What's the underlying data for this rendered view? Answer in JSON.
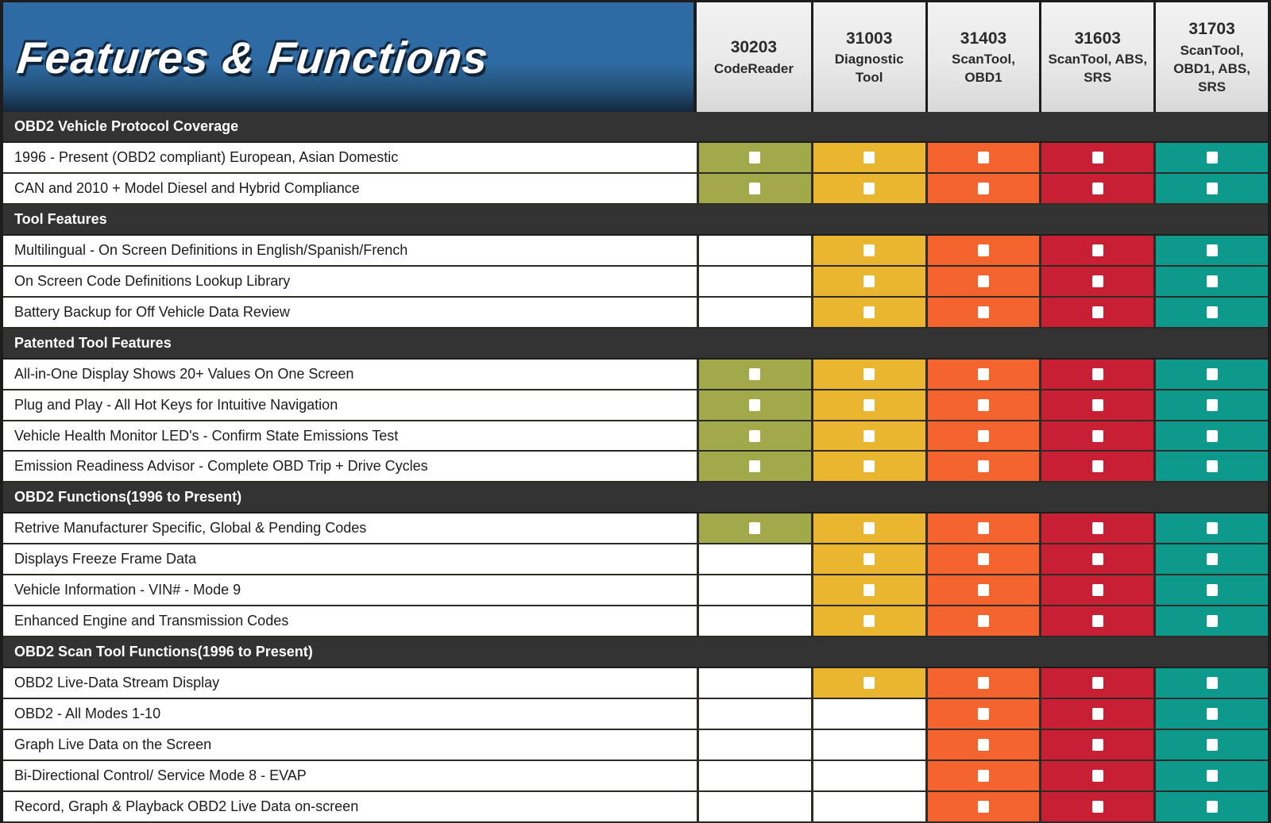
{
  "header": {
    "title": "Features & Functions",
    "banner_colors": {
      "top": "#2e6ba4",
      "bottom": "#13273d"
    },
    "products": [
      {
        "id": "30203",
        "name": "CodeReader",
        "color": "#a2a94b"
      },
      {
        "id": "31003",
        "name": "Diagnostic Tool",
        "color": "#ebb62f"
      },
      {
        "id": "31403",
        "name": "ScanTool, OBD1",
        "color": "#f4642e"
      },
      {
        "id": "31603",
        "name": "ScanTool, ABS, SRS",
        "color": "#c91f35"
      },
      {
        "id": "31703",
        "name": "ScanTool, OBD1, ABS, SRS",
        "color": "#0d9a8c"
      }
    ]
  },
  "marker": {
    "icon": "check-marker",
    "color": "#ffffff"
  },
  "section_style": {
    "background": "#333333",
    "text_color": "#ffffff"
  },
  "sections": [
    {
      "title": "OBD2 Vehicle Protocol Coverage",
      "rows": [
        {
          "label": "1996 - Present (OBD2 compliant) European, Asian Domestic",
          "checks": [
            true,
            true,
            true,
            true,
            true
          ]
        },
        {
          "label": "CAN and 2010 + Model Diesel and Hybrid Compliance",
          "checks": [
            true,
            true,
            true,
            true,
            true
          ]
        }
      ]
    },
    {
      "title": "Tool Features",
      "rows": [
        {
          "label": "Multilingual - On Screen Definitions in English/Spanish/French",
          "checks": [
            false,
            true,
            true,
            true,
            true
          ]
        },
        {
          "label": "On Screen Code Definitions Lookup Library",
          "checks": [
            false,
            true,
            true,
            true,
            true
          ]
        },
        {
          "label": "Battery Backup for Off Vehicle Data Review",
          "checks": [
            false,
            true,
            true,
            true,
            true
          ]
        }
      ]
    },
    {
      "title": "Patented Tool Features",
      "rows": [
        {
          "label": "All-in-One Display Shows 20+ Values On One Screen",
          "checks": [
            true,
            true,
            true,
            true,
            true
          ]
        },
        {
          "label": "Plug and Play - All Hot Keys for Intuitive Navigation",
          "checks": [
            true,
            true,
            true,
            true,
            true
          ]
        },
        {
          "label": "Vehicle Health Monitor LED's - Confirm State Emissions Test",
          "checks": [
            true,
            true,
            true,
            true,
            true
          ]
        },
        {
          "label": "Emission Readiness Advisor - Complete OBD Trip + Drive Cycles",
          "checks": [
            true,
            true,
            true,
            true,
            true
          ]
        }
      ]
    },
    {
      "title": "OBD2 Functions(1996 to Present)",
      "rows": [
        {
          "label": "Retrive Manufacturer Specific, Global & Pending Codes",
          "checks": [
            true,
            true,
            true,
            true,
            true
          ]
        },
        {
          "label": "Displays Freeze Frame Data",
          "checks": [
            false,
            true,
            true,
            true,
            true
          ]
        },
        {
          "label": "Vehicle Information - VIN# - Mode 9",
          "checks": [
            false,
            true,
            true,
            true,
            true
          ]
        },
        {
          "label": "Enhanced Engine and Transmission Codes",
          "checks": [
            false,
            true,
            true,
            true,
            true
          ]
        }
      ]
    },
    {
      "title": "OBD2 Scan Tool Functions(1996 to Present)",
      "rows": [
        {
          "label": "OBD2 Live-Data Stream Display",
          "checks": [
            false,
            true,
            true,
            true,
            true
          ]
        },
        {
          "label": "OBD2 - All Modes 1-10",
          "checks": [
            false,
            false,
            true,
            true,
            true
          ]
        },
        {
          "label": "Graph Live Data on the Screen",
          "checks": [
            false,
            false,
            true,
            true,
            true
          ]
        },
        {
          "label": "Bi-Directional Control/ Service Mode 8 - EVAP",
          "checks": [
            false,
            false,
            true,
            true,
            true
          ]
        },
        {
          "label": "Record, Graph & Playback OBD2 Live Data on-screen",
          "checks": [
            false,
            false,
            true,
            true,
            true
          ]
        }
      ]
    }
  ]
}
